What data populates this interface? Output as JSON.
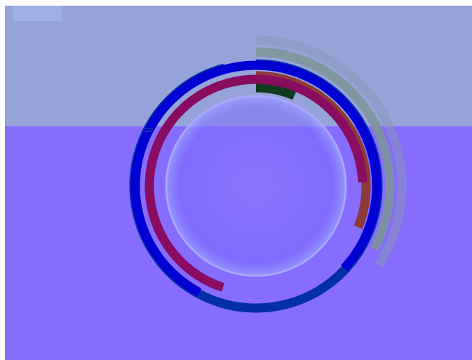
{
  "page": {
    "title": "",
    "top_bg": "#96a3d9",
    "bottom_bg": "#866cff"
  },
  "chart_data": {
    "type": "radial-bar",
    "title": "",
    "center_disc": true,
    "series": [
      {
        "color": "#8999b8",
        "value_deg": 123
      },
      {
        "color": "#7c9797",
        "value_deg": 118
      },
      {
        "color": "#002fa8",
        "value_deg": 345
      },
      {
        "color": "#8e3a37",
        "value_deg": 112
      },
      {
        "color": "#0f3b1e",
        "value_deg": 23
      },
      {
        "color": "#0000d4",
        "value_deg": 285
      },
      {
        "color": "#880c60",
        "value_deg": 250
      }
    ]
  }
}
